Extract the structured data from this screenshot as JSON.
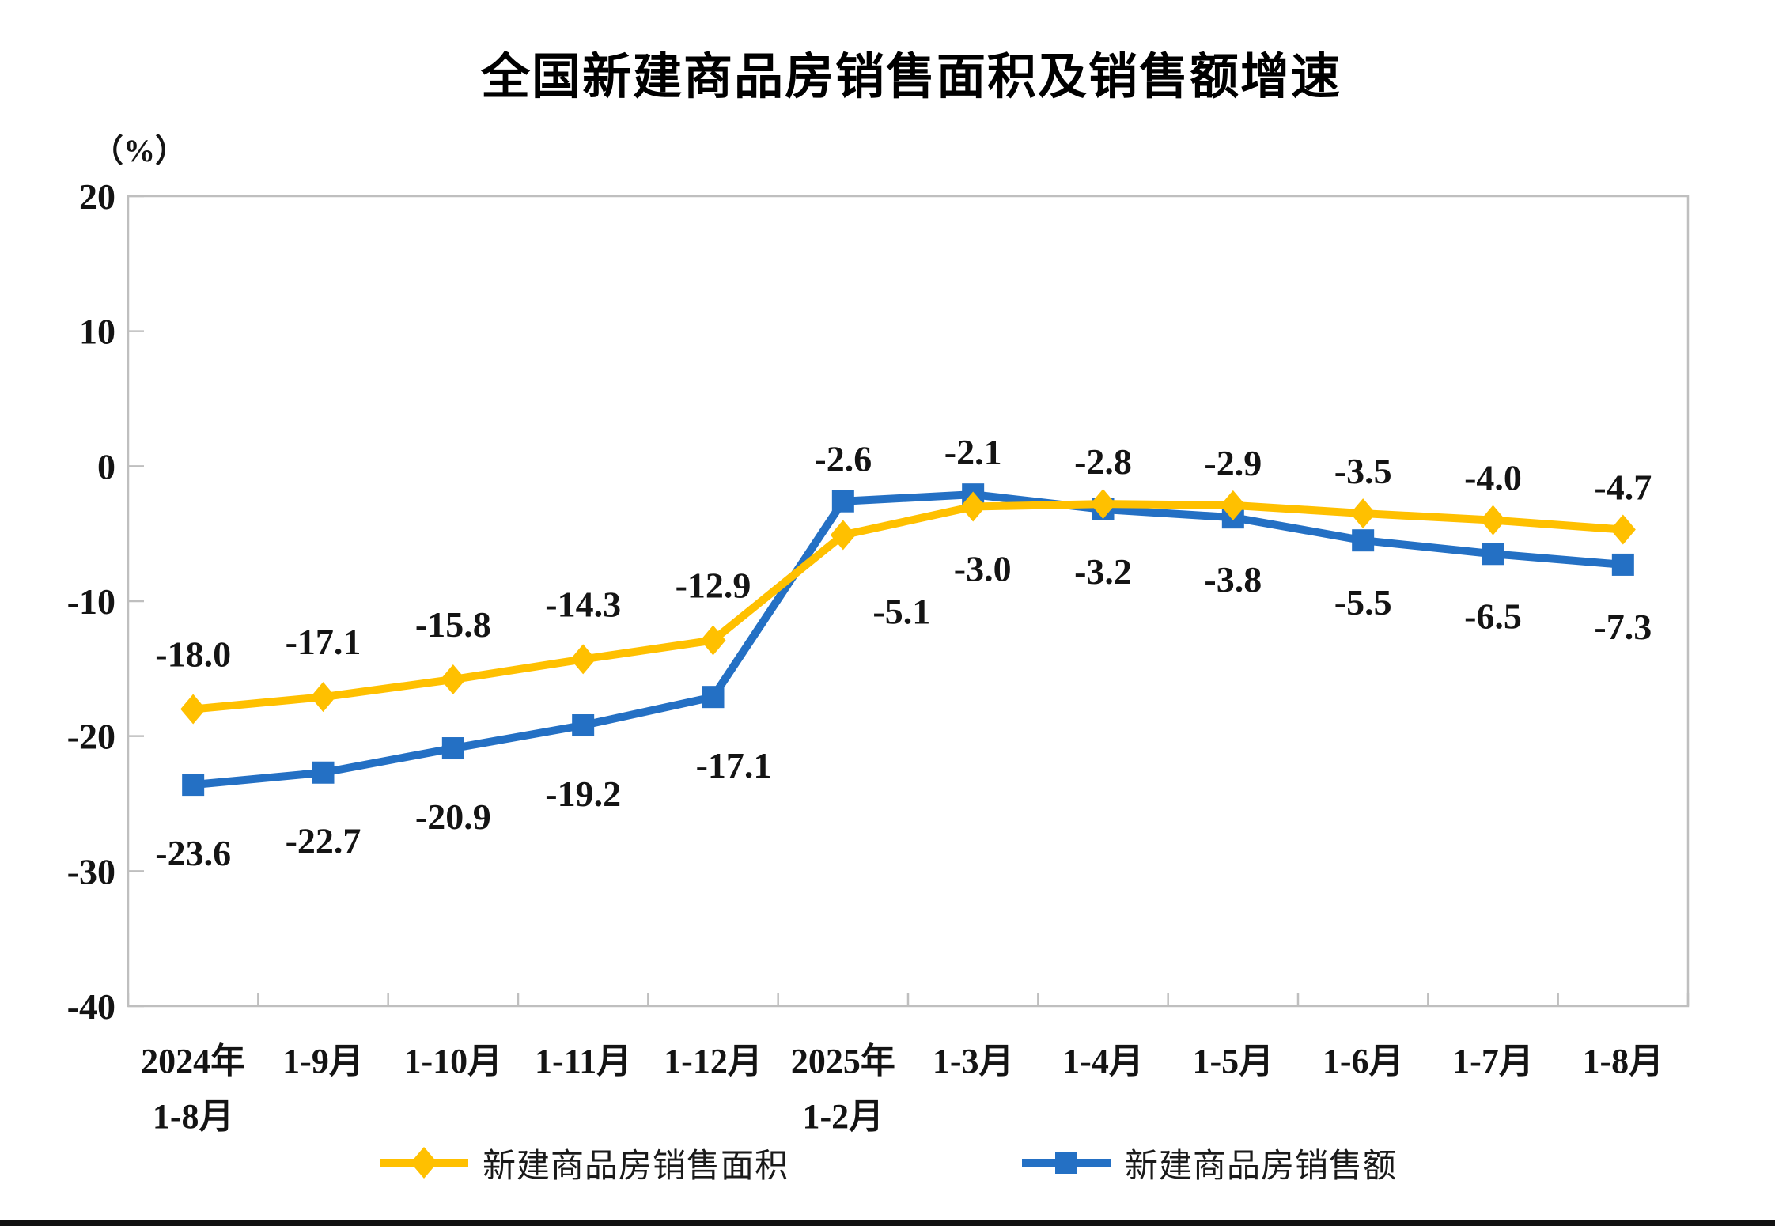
{
  "chart_data": {
    "type": "line",
    "title": "全国新建商品房销售面积及销售额增速",
    "unit_label": "（%）",
    "categories": [
      "2024年\n1-8月",
      "1-9月",
      "1-10月",
      "1-11月",
      "1-12月",
      "2025年\n1-2月",
      "1-3月",
      "1-4月",
      "1-5月",
      "1-6月",
      "1-7月",
      "1-8月"
    ],
    "series": [
      {
        "name": "新建商品房销售面积",
        "marker": "diamond",
        "color": "#FFC000",
        "values": [
          -18.0,
          -17.1,
          -15.8,
          -14.3,
          -12.9,
          -5.1,
          -3.0,
          -2.8,
          -2.9,
          -3.5,
          -4.0,
          -4.7
        ]
      },
      {
        "name": "新建商品房销售额",
        "marker": "square",
        "color": "#2470C4",
        "values": [
          -23.6,
          -22.7,
          -20.9,
          -19.2,
          -17.1,
          -2.6,
          -2.1,
          -3.2,
          -3.8,
          -5.5,
          -6.5,
          -7.3
        ]
      }
    ],
    "y_axis": {
      "min": -40,
      "max": 20,
      "tick_step": 10,
      "ticks": [
        20,
        10,
        0,
        -10,
        -20,
        -30,
        -40
      ]
    },
    "ylim": [
      -40,
      20
    ],
    "grid": false,
    "legend_position": "bottom",
    "axis_color": "#BFBFBF",
    "text_color": "#141414",
    "data_label_format": "one-decimal"
  }
}
